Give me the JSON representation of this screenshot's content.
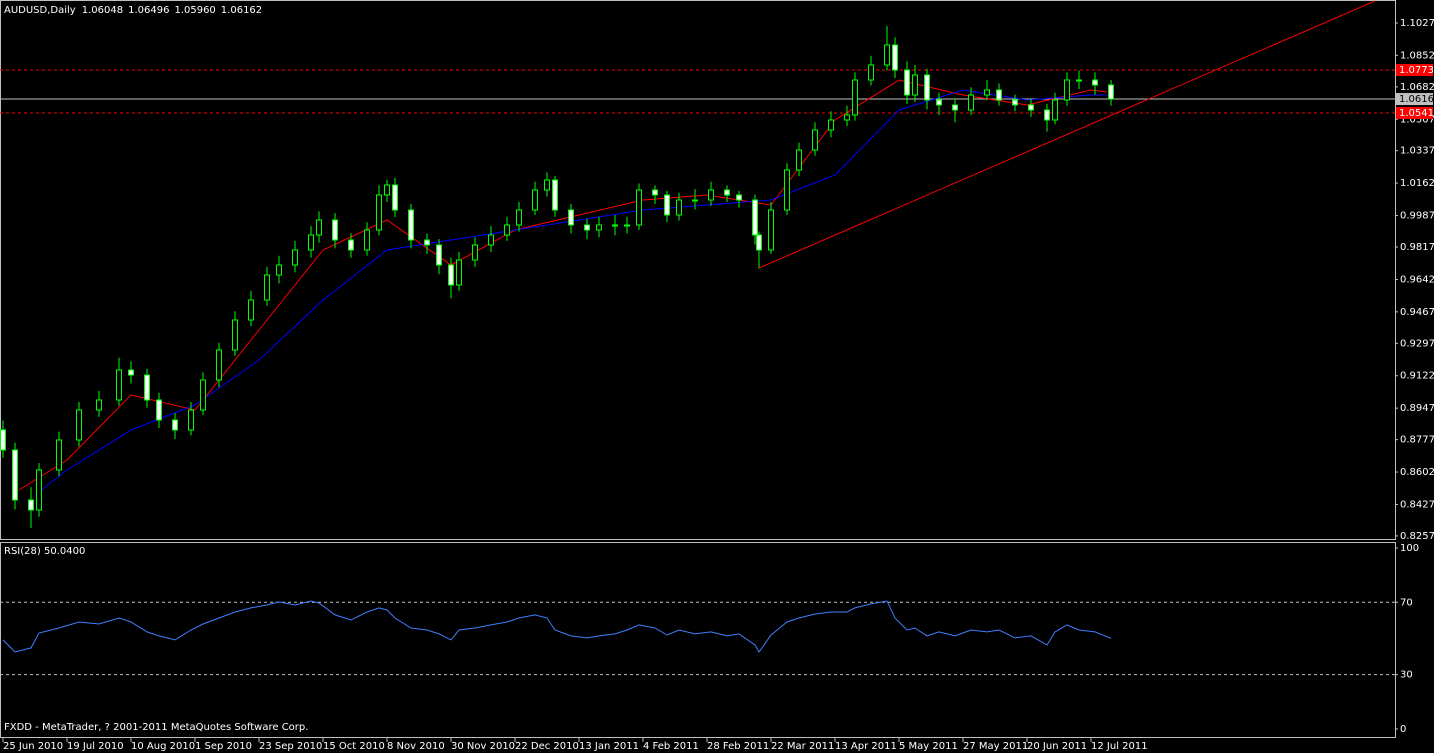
{
  "chart_data": [
    {
      "type": "candlestick",
      "symbol": "AUDUSD,Daily",
      "ohlc": [
        "1.06048",
        "1.06496",
        "1.05960",
        "1.06162"
      ],
      "color": "#00ff00",
      "xlim": [
        -0.75,
        348
      ],
      "ylim": [
        0.8235,
        1.1151
      ],
      "yticks": [
        {
          "value": 1.1027,
          "label": "1.10270"
        },
        {
          "value": 1.0852,
          "label": "1.08520"
        },
        {
          "value": 1.0682,
          "label": "1.06820"
        },
        {
          "value": 1.0507,
          "label": "1.05070"
        },
        {
          "value": 1.0337,
          "label": "1.03370"
        },
        {
          "value": 1.0162,
          "label": "1.01620"
        },
        {
          "value": 0.9987,
          "label": "0.99870"
        },
        {
          "value": 0.9817,
          "label": "0.98170"
        },
        {
          "value": 0.9642,
          "label": "0.96420"
        },
        {
          "value": 0.9467,
          "label": "0.94670"
        },
        {
          "value": 0.9297,
          "label": "0.92970"
        },
        {
          "value": 0.9122,
          "label": "0.91220"
        },
        {
          "value": 0.8947,
          "label": "0.89470"
        },
        {
          "value": 0.8777,
          "label": "0.87770"
        },
        {
          "value": 0.8602,
          "label": "0.86020"
        },
        {
          "value": 0.8427,
          "label": "0.84270"
        },
        {
          "value": 0.8257,
          "label": "0.82570"
        }
      ],
      "x": [
        0,
        3,
        7,
        9,
        14,
        19,
        24,
        29,
        32,
        36,
        39,
        43,
        47,
        50,
        54,
        58,
        62,
        66,
        69,
        73,
        77,
        79,
        83,
        87,
        91,
        94,
        96,
        98,
        102,
        106,
        109,
        112,
        114,
        118,
        122,
        126,
        129,
        133,
        136,
        138,
        142,
        146,
        149,
        153,
        156,
        159,
        163,
        166,
        169,
        173,
        177,
        181,
        184,
        188,
        189,
        192,
        196,
        199,
        203,
        207,
        211,
        213,
        217,
        221,
        223,
        226,
        228,
        231,
        234,
        238,
        242,
        246,
        249,
        253,
        257,
        261,
        263,
        266,
        269,
        273,
        277
      ],
      "open": [
        0.883,
        0.8721,
        0.8451,
        0.8397,
        0.8613,
        0.8775,
        0.8937,
        0.8991,
        0.9153,
        0.9126,
        0.8991,
        0.8883,
        0.8829,
        0.8937,
        0.9099,
        0.9261,
        0.9423,
        0.9531,
        0.9666,
        0.972,
        0.9801,
        0.9882,
        0.9963,
        0.9855,
        0.9801,
        0.9909,
        1.0098,
        1.0152,
        1.0017,
        0.9855,
        0.9828,
        0.972,
        0.9612,
        0.9747,
        0.9828,
        0.9882,
        0.9936,
        1.0017,
        1.0125,
        1.0179,
        1.0017,
        0.9936,
        0.9909,
        0.9936,
        0.9936,
        0.9936,
        1.0125,
        1.0098,
        0.999,
        1.0071,
        1.0071,
        1.0125,
        1.0098,
        1.0071,
        0.9882,
        0.9801,
        1.0017,
        1.0233,
        1.0341,
        1.0449,
        1.0503,
        1.053,
        1.0719,
        1.08,
        1.0908,
        1.0773,
        1.0638,
        1.0746,
        1.0611,
        1.0584,
        1.0557,
        1.0638,
        1.0665,
        1.0611,
        1.0584,
        1.0557,
        1.0503,
        1.0611,
        1.0719,
        1.0719,
        1.0692
      ],
      "high": [
        0.888,
        0.876,
        0.852,
        0.865,
        0.882,
        0.898,
        0.904,
        0.922,
        0.92,
        0.916,
        0.903,
        0.892,
        0.898,
        0.914,
        0.93,
        0.947,
        0.958,
        0.971,
        0.977,
        0.985,
        0.993,
        1.001,
        1.0,
        0.989,
        0.995,
        1.015,
        1.018,
        1.019,
        1.005,
        0.989,
        0.986,
        0.976,
        0.979,
        0.987,
        0.993,
        0.998,
        1.006,
        1.017,
        1.022,
        1.02,
        1.005,
        0.997,
        0.998,
        0.999,
        0.998,
        1.016,
        1.015,
        1.012,
        1.011,
        1.013,
        1.017,
        1.015,
        1.012,
        1.01,
        0.99,
        1.006,
        1.027,
        1.038,
        1.049,
        1.055,
        1.058,
        1.076,
        1.085,
        1.101,
        1.095,
        1.082,
        1.08,
        1.078,
        1.065,
        1.062,
        1.068,
        1.072,
        1.07,
        1.064,
        1.062,
        1.059,
        1.065,
        1.076,
        1.077,
        1.076,
        1.072
      ],
      "low": [
        0.868,
        0.84,
        0.83,
        0.836,
        0.858,
        0.874,
        0.89,
        0.896,
        0.908,
        0.895,
        0.884,
        0.878,
        0.88,
        0.891,
        0.906,
        0.923,
        0.939,
        0.95,
        0.962,
        0.968,
        0.976,
        0.984,
        0.981,
        0.976,
        0.977,
        0.988,
        1.006,
        0.998,
        0.981,
        0.978,
        0.967,
        0.954,
        0.958,
        0.971,
        0.979,
        0.985,
        0.99,
        0.999,
        1.009,
        0.998,
        0.989,
        0.986,
        0.987,
        0.988,
        0.989,
        0.991,
        1.005,
        0.995,
        0.996,
        1.002,
        1.004,
        1.006,
        1.003,
        0.983,
        0.97,
        0.978,
        0.999,
        1.02,
        1.031,
        1.041,
        1.047,
        1.05,
        1.069,
        1.077,
        1.073,
        1.059,
        1.06,
        1.056,
        1.053,
        1.049,
        1.053,
        1.061,
        1.058,
        1.055,
        1.052,
        1.044,
        1.048,
        1.058,
        1.067,
        1.064,
        1.058
      ],
      "close": [
        0.8721,
        0.8451,
        0.8397,
        0.8613,
        0.8775,
        0.8937,
        0.8991,
        0.9153,
        0.9126,
        0.8991,
        0.8883,
        0.8829,
        0.8937,
        0.9099,
        0.9261,
        0.9423,
        0.9531,
        0.9666,
        0.972,
        0.9801,
        0.9882,
        0.9963,
        0.9855,
        0.9801,
        0.9909,
        1.0098,
        1.0152,
        1.0017,
        0.9855,
        0.9828,
        0.972,
        0.9612,
        0.9747,
        0.9828,
        0.9882,
        0.9936,
        1.0017,
        1.0125,
        1.0179,
        1.0017,
        0.9936,
        0.9909,
        0.9936,
        0.9936,
        0.9936,
        1.0125,
        1.0098,
        0.999,
        1.0071,
        1.0071,
        1.0125,
        1.0098,
        1.0071,
        0.9882,
        0.9801,
        1.0017,
        1.0233,
        1.0341,
        1.0449,
        1.0503,
        1.053,
        1.0719,
        1.08,
        1.0908,
        1.0773,
        1.0638,
        1.0746,
        1.0611,
        1.0584,
        1.0557,
        1.0638,
        1.0665,
        1.0611,
        1.0584,
        1.0557,
        1.0503,
        1.0611,
        1.0719,
        1.0719,
        1.0692,
        1.0616
      ],
      "moving_averages": [
        {
          "color": "#ff0000",
          "x": [
            4,
            16,
            32,
            48,
            64,
            80,
            96,
            112,
            128,
            144,
            160,
            176,
            192,
            208,
            224,
            240,
            256,
            272,
            276
          ],
          "values": [
            0.8505,
            0.8667,
            0.9018,
            0.8937,
            0.9369,
            0.9801,
            0.9963,
            0.972,
            0.9909,
            0.999,
            1.0071,
            1.0098,
            1.0044,
            1.0503,
            1.0719,
            1.0638,
            1.0584,
            1.0665,
            1.0654
          ]
        },
        {
          "color": "#0000ff",
          "x": [
            8,
            16,
            32,
            48,
            64,
            80,
            96,
            112,
            128,
            144,
            160,
            176,
            192,
            208,
            224,
            240,
            256,
            272,
            276
          ],
          "values": [
            0.8478,
            0.8613,
            0.8829,
            0.8964,
            0.9207,
            0.9531,
            0.9801,
            0.9855,
            0.9909,
            0.9963,
            1.0017,
            1.0044,
            1.0071,
            1.0206,
            1.0557,
            1.0665,
            1.0611,
            1.0638,
            1.0638
          ]
        }
      ],
      "levels": [
        {
          "value": 1.0773,
          "label": "1.07730",
          "color": "#ff0000",
          "text_color": "#ffffff",
          "dashed": true
        },
        {
          "value": 1.0541,
          "label": "1.05410",
          "color": "#ff0000",
          "text_color": "#ffffff",
          "dashed": true
        },
        {
          "value": 1.06162,
          "label": "1.06162",
          "color": "#c0c0c0",
          "text_color": "#000000",
          "dashed": false
        }
      ],
      "trendline": {
        "color": "#ff0000",
        "x": [
          189,
          343
        ],
        "values": [
          0.9704,
          1.1146
        ]
      }
    },
    {
      "type": "line",
      "title": "RSI(28) 50.0400",
      "annotation": "FXDD - MetaTrader, ? 2001-2011 MetaQuotes Software Corp.",
      "color": "#3f7fff",
      "xlim": [
        -0.75,
        348
      ],
      "ylim": [
        -5,
        103.3
      ],
      "yticks": [
        100,
        70,
        30,
        0
      ],
      "levels": [
        70,
        30
      ],
      "xticks": [
        {
          "value": 0,
          "label": "25 Jun 2010"
        },
        {
          "value": 16,
          "label": "19 Jul 2010"
        },
        {
          "value": 32,
          "label": "10 Aug 2010"
        },
        {
          "value": 48,
          "label": "1 Sep 2010"
        },
        {
          "value": 64,
          "label": "23 Sep 2010"
        },
        {
          "value": 80,
          "label": "15 Oct 2010"
        },
        {
          "value": 96,
          "label": "8 Nov 2010"
        },
        {
          "value": 112,
          "label": "30 Nov 2010"
        },
        {
          "value": 128,
          "label": "22 Dec 2010"
        },
        {
          "value": 144,
          "label": "13 Jan 2011"
        },
        {
          "value": 160,
          "label": "4 Feb 2011"
        },
        {
          "value": 176,
          "label": "28 Feb 2011"
        },
        {
          "value": 192,
          "label": "22 Mar 2011"
        },
        {
          "value": 208,
          "label": "13 Apr 2011"
        },
        {
          "value": 224,
          "label": "5 May 2011"
        },
        {
          "value": 240,
          "label": "27 May 2011"
        },
        {
          "value": 256,
          "label": "20 Jun 2011"
        },
        {
          "value": 272,
          "label": "12 Jul 2011"
        }
      ],
      "x": [
        0,
        3,
        7,
        9,
        14,
        19,
        24,
        29,
        32,
        36,
        39,
        43,
        47,
        50,
        54,
        58,
        62,
        66,
        69,
        73,
        77,
        79,
        83,
        87,
        91,
        94,
        96,
        98,
        102,
        106,
        109,
        112,
        114,
        118,
        122,
        126,
        129,
        133,
        136,
        138,
        142,
        146,
        149,
        153,
        156,
        159,
        163,
        166,
        169,
        173,
        177,
        181,
        184,
        188,
        189,
        192,
        196,
        199,
        203,
        207,
        211,
        213,
        217,
        221,
        223,
        226,
        228,
        231,
        234,
        238,
        242,
        246,
        249,
        253,
        257,
        261,
        263,
        266,
        269,
        273,
        277
      ],
      "values": [
        49.2,
        42.5,
        44.8,
        53.0,
        55.8,
        59.1,
        58.0,
        61.3,
        59.1,
        53.6,
        51.4,
        49.2,
        54.7,
        58.0,
        61.3,
        64.6,
        66.9,
        68.5,
        70.2,
        68.5,
        70.7,
        69.6,
        63.0,
        60.2,
        64.6,
        66.9,
        65.7,
        61.3,
        55.8,
        54.7,
        52.5,
        49.2,
        54.7,
        55.8,
        57.5,
        59.1,
        61.3,
        63.0,
        61.3,
        54.7,
        51.4,
        50.3,
        51.4,
        52.5,
        54.7,
        57.5,
        55.8,
        51.9,
        54.7,
        52.5,
        53.6,
        51.4,
        52.5,
        46.4,
        42.5,
        51.9,
        59.1,
        61.3,
        63.5,
        64.6,
        64.6,
        66.9,
        69.1,
        70.7,
        61.3,
        54.7,
        55.8,
        51.4,
        53.6,
        51.4,
        54.7,
        53.6,
        54.7,
        50.3,
        51.4,
        46.4,
        53.6,
        57.5,
        54.7,
        53.6,
        50.04
      ]
    }
  ]
}
